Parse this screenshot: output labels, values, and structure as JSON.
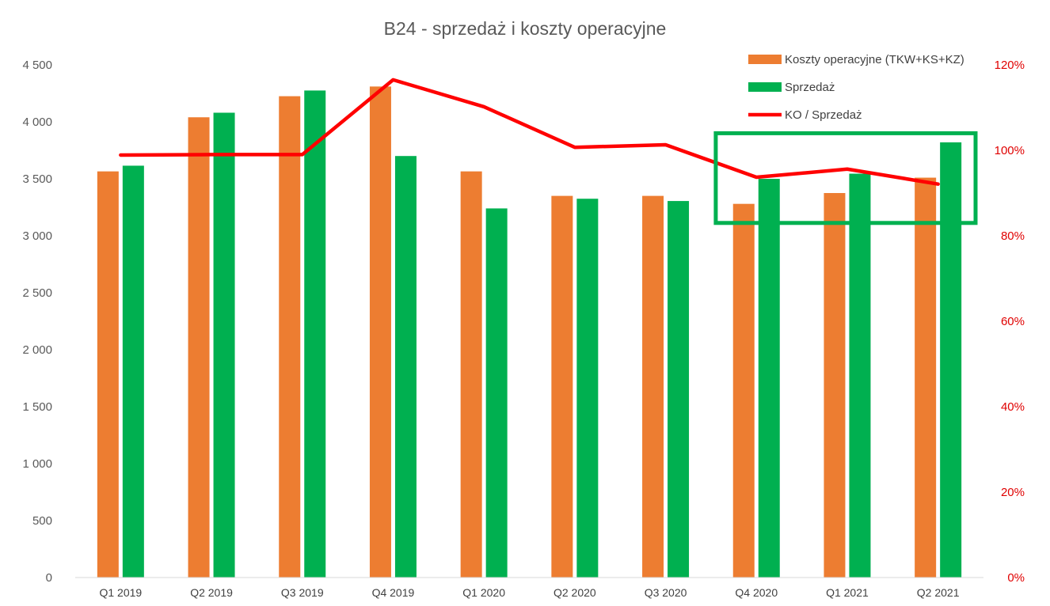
{
  "chart_data": {
    "type": "bar",
    "title": "B24 - sprzedaż i koszty operacyjne",
    "categories": [
      "Q1 2019",
      "Q2 2019",
      "Q3 2019",
      "Q4 2019",
      "Q1 2020",
      "Q2 2020",
      "Q3 2020",
      "Q4 2020",
      "Q1 2021",
      "Q2 2021"
    ],
    "series": [
      {
        "name": "Koszty operacyjne (TKW+KS+KZ)",
        "type": "bar",
        "axis": "left",
        "color": "#ed7d31",
        "values": [
          3565,
          4040,
          4225,
          4310,
          3565,
          3350,
          3350,
          3280,
          3375,
          3510
        ]
      },
      {
        "name": "Sprzedaż",
        "type": "bar",
        "axis": "left",
        "color": "#00b050",
        "values": [
          3615,
          4080,
          4275,
          3700,
          3240,
          3325,
          3305,
          3500,
          3545,
          3820
        ]
      },
      {
        "name": "KO / Sprzedaż",
        "type": "line",
        "axis": "right",
        "color": "#ff0000",
        "values": [
          0.989,
          0.99,
          0.99,
          1.165,
          1.102,
          1.007,
          1.013,
          0.937,
          0.956,
          0.921
        ]
      }
    ],
    "ylim": [
      0,
      4500
    ],
    "y_ticks": [
      "0",
      "500",
      "1 000",
      "1 500",
      "2 000",
      "2 500",
      "3 000",
      "3 500",
      "4 000",
      "4 500"
    ],
    "y_tick_values": [
      0,
      500,
      1000,
      1500,
      2000,
      2500,
      3000,
      3500,
      4000,
      4500
    ],
    "y2lim": [
      0,
      1.2
    ],
    "y2_ticks": [
      "0%",
      "20%",
      "40%",
      "60%",
      "80%",
      "100%",
      "120%"
    ],
    "y2_tick_values": [
      0,
      0.2,
      0.4,
      0.6,
      0.8,
      1.0,
      1.2
    ],
    "grid": false,
    "legend_position": "top-right",
    "highlight": {
      "from_category": "Q4 2020",
      "to_category": "Q2 2021",
      "y2_range": [
        0.83,
        1.04
      ],
      "color": "#00b050"
    }
  }
}
